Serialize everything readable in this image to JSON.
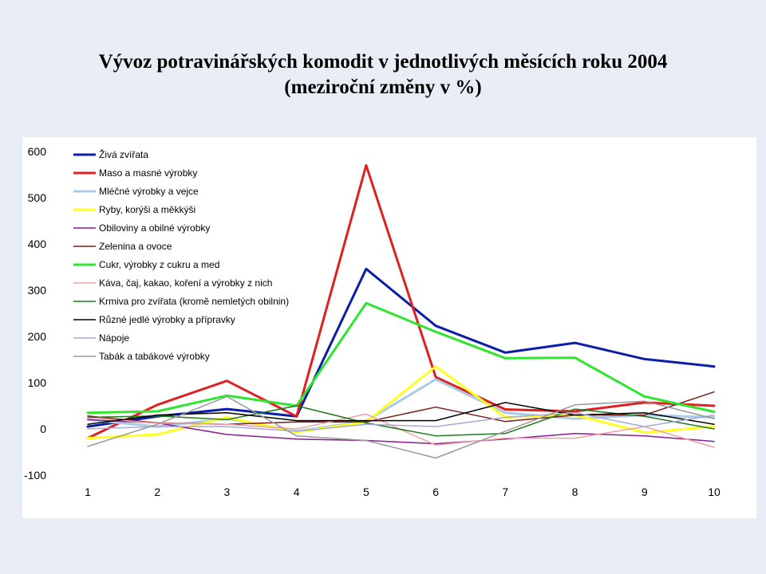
{
  "title_line1": "Vývoz potravinářských komodit v jednotlivých měsících roku 2004",
  "title_line2": "(meziroční změny v %)",
  "chart_data": {
    "type": "line",
    "title": "Vývoz potravinářských komodit v jednotlivých měsících roku 2004 (meziroční změny v %)",
    "xlabel": "",
    "ylabel": "",
    "x": [
      1,
      2,
      3,
      4,
      5,
      6,
      7,
      8,
      9,
      10
    ],
    "ylim": [
      -100,
      600
    ],
    "yticks": [
      -100,
      0,
      100,
      200,
      300,
      400,
      500,
      600
    ],
    "grid": false,
    "legend_position": "top-left",
    "series": [
      {
        "name": "Živá zvířata",
        "color": "#0a1ea8",
        "width": 3,
        "values": [
          5,
          27,
          43,
          27,
          346,
          223,
          165,
          186,
          151,
          135
        ]
      },
      {
        "name": "Maso a masné výrobky",
        "color": "#e02020",
        "width": 3,
        "values": [
          -20,
          52,
          104,
          27,
          570,
          112,
          42,
          38,
          57,
          50
        ]
      },
      {
        "name": "Mléčné výrobky a vejce",
        "color": "#a8cbea",
        "width": 3,
        "values": [
          20,
          5,
          22,
          -5,
          17,
          107,
          35,
          22,
          30,
          25
        ]
      },
      {
        "name": "Ryby, korýši a měkkýši",
        "color": "#ffff22",
        "width": 3,
        "values": [
          -20,
          -12,
          25,
          -7,
          15,
          135,
          25,
          30,
          -8,
          5
        ]
      },
      {
        "name": "Obiloviny a obilné výrobky",
        "color": "#8a1c8c",
        "width": 1.5,
        "values": [
          20,
          13,
          -12,
          -22,
          -25,
          -32,
          -22,
          -10,
          -15,
          -27
        ]
      },
      {
        "name": "Zelenina a ovoce",
        "color": "#7a1a1a",
        "width": 1.5,
        "values": [
          28,
          13,
          10,
          15,
          15,
          47,
          16,
          30,
          30,
          80
        ]
      },
      {
        "name": "Cukr, výrobky z cukru a med",
        "color": "#2ee62e",
        "width": 3,
        "values": [
          35,
          38,
          72,
          50,
          272,
          210,
          153,
          154,
          70,
          37
        ]
      },
      {
        "name": "Káva, čaj, kakao, koření a výrobky z nich",
        "color": "#f0a0a0",
        "width": 1.5,
        "values": [
          25,
          12,
          10,
          0,
          32,
          -35,
          -20,
          -20,
          5,
          -40
        ]
      },
      {
        "name": "Krmiva pro zvířata (kromě nemletých obilnin)",
        "color": "#1e7a1e",
        "width": 1.5,
        "values": [
          25,
          28,
          20,
          50,
          13,
          -15,
          -10,
          43,
          27,
          0
        ]
      },
      {
        "name": "Různé jedlé výrobky a přípravky",
        "color": "#000000",
        "width": 1.5,
        "values": [
          10,
          30,
          35,
          18,
          18,
          18,
          57,
          30,
          35,
          10
        ]
      },
      {
        "name": "Nápoje",
        "color": "#a8a8d8",
        "width": 1.5,
        "values": [
          0,
          5,
          5,
          -5,
          10,
          5,
          25,
          35,
          5,
          30
        ]
      },
      {
        "name": "Tabák a tabákové výrobky",
        "color": "#999999",
        "width": 1.5,
        "values": [
          -38,
          10,
          70,
          -15,
          -25,
          -63,
          -5,
          52,
          60,
          22
        ]
      }
    ]
  }
}
